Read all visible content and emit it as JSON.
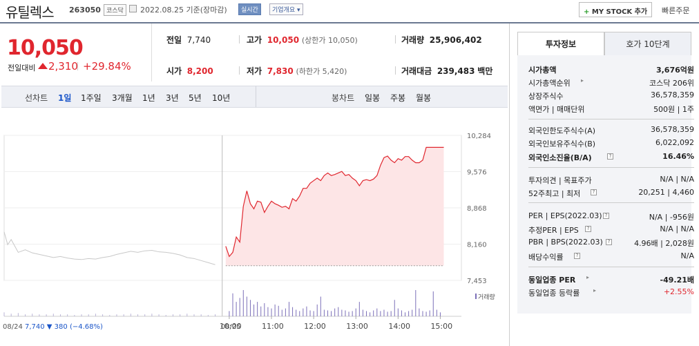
{
  "header": {
    "stock_name": "유틸렉스",
    "stock_code": "263050",
    "market": "코스닥",
    "date": "2022.08.25 기준(장마감)",
    "realtime": "실시간",
    "overview": "기업개요 ▾",
    "my_stock": "MY STOCK 추가",
    "my_stock_plus": "+",
    "quick_order": "빠른주문"
  },
  "price": {
    "current": "10,050",
    "change_label": "전일대비",
    "change": "2,310",
    "change_pct": "+29.84%",
    "up_color": "#e0262e"
  },
  "quote": {
    "prev_label": "전일",
    "prev": "7,740",
    "high_label": "고가",
    "high": "10,050",
    "high_limit": "(상한가 10,050)",
    "volume_label": "거래량",
    "volume": "25,906,402",
    "open_label": "시가",
    "open": "8,200",
    "low_label": "저가",
    "low": "7,830",
    "low_limit": "(하한가 5,420)",
    "amount_label": "거래대금",
    "amount": "239,483",
    "amount_unit": "백만"
  },
  "period_tabs": {
    "line_label": "선차트",
    "items": [
      "1일",
      "1주일",
      "3개월",
      "1년",
      "3년",
      "5년",
      "10년"
    ],
    "active": "1일",
    "candle_label": "봉차트",
    "candle_items": [
      "일봉",
      "주봉",
      "월봉"
    ]
  },
  "chart_data": {
    "type": "line",
    "y_ticks": [
      "10,284",
      "9,576",
      "8,868",
      "8,160",
      "7,453"
    ],
    "ylim": [
      7453,
      10284
    ],
    "x_ticks": [
      "10:00",
      "11:00",
      "12:00",
      "13:00",
      "14:00",
      "15:00"
    ],
    "prev_day_label": "08/24",
    "prev_day_close": "7,740",
    "prev_day_change": "▼ 380",
    "prev_day_pct": "(−4.68%)",
    "today_label": "08/25",
    "volume_legend": "거래량",
    "base_line": 7740,
    "prev_series": [
      [
        0,
        8400
      ],
      [
        1,
        8150
      ],
      [
        2,
        8250
      ],
      [
        4,
        8000
      ],
      [
        6,
        8050
      ],
      [
        8,
        7990
      ],
      [
        10,
        7960
      ],
      [
        12,
        7930
      ],
      [
        14,
        7900
      ],
      [
        16,
        7920
      ],
      [
        18,
        7890
      ],
      [
        20,
        7870
      ],
      [
        22,
        7860
      ],
      [
        24,
        7880
      ],
      [
        26,
        7870
      ],
      [
        28,
        7900
      ],
      [
        30,
        7920
      ],
      [
        32,
        7960
      ],
      [
        34,
        7990
      ],
      [
        36,
        8020
      ],
      [
        38,
        8000
      ],
      [
        40,
        8030
      ],
      [
        42,
        8040
      ],
      [
        44,
        8010
      ],
      [
        46,
        8000
      ],
      [
        48,
        7980
      ],
      [
        50,
        7950
      ],
      [
        52,
        7900
      ],
      [
        54,
        7880
      ],
      [
        56,
        7840
      ],
      [
        58,
        7800
      ],
      [
        60,
        7760
      ]
    ],
    "today_series": [
      [
        63,
        8120
      ],
      [
        64,
        7920
      ],
      [
        65,
        8000
      ],
      [
        66,
        8300
      ],
      [
        67,
        8200
      ],
      [
        68,
        8900
      ],
      [
        69,
        9200
      ],
      [
        70,
        8950
      ],
      [
        71,
        8850
      ],
      [
        72,
        9000
      ],
      [
        73,
        8980
      ],
      [
        74,
        8780
      ],
      [
        75,
        8900
      ],
      [
        76,
        9000
      ],
      [
        77,
        8950
      ],
      [
        78,
        8920
      ],
      [
        79,
        8880
      ],
      [
        80,
        8900
      ],
      [
        81,
        8850
      ],
      [
        82,
        9050
      ],
      [
        83,
        9000
      ],
      [
        84,
        9100
      ],
      [
        85,
        9250
      ],
      [
        86,
        9250
      ],
      [
        87,
        9350
      ],
      [
        88,
        9400
      ],
      [
        89,
        9450
      ],
      [
        90,
        9400
      ],
      [
        91,
        9500
      ],
      [
        92,
        9550
      ],
      [
        93,
        9500
      ],
      [
        94,
        9520
      ],
      [
        95,
        9550
      ],
      [
        96,
        9580
      ],
      [
        97,
        9500
      ],
      [
        98,
        9520
      ],
      [
        99,
        9450
      ],
      [
        100,
        9400
      ],
      [
        101,
        9300
      ],
      [
        102,
        9400
      ],
      [
        103,
        9420
      ],
      [
        104,
        9400
      ],
      [
        105,
        9430
      ],
      [
        106,
        9500
      ],
      [
        107,
        9700
      ],
      [
        108,
        9850
      ],
      [
        109,
        9880
      ],
      [
        110,
        9800
      ],
      [
        111,
        9750
      ],
      [
        112,
        9830
      ],
      [
        113,
        9800
      ],
      [
        114,
        9870
      ],
      [
        115,
        9870
      ],
      [
        116,
        9800
      ],
      [
        117,
        9750
      ],
      [
        118,
        9750
      ],
      [
        119,
        9800
      ],
      [
        120,
        10050
      ],
      [
        125,
        10050
      ]
    ],
    "volume_prev": [
      6,
      4,
      5,
      3,
      4,
      3,
      3,
      4,
      3,
      3,
      2,
      3,
      3,
      4,
      3,
      2,
      3,
      3,
      4,
      3,
      3,
      4,
      3,
      2,
      3,
      3,
      4,
      3,
      3,
      2,
      3
    ],
    "volume_today": [
      8,
      35,
      22,
      28,
      40,
      30,
      25,
      18,
      22,
      15,
      20,
      14,
      12,
      18,
      16,
      10,
      12,
      22,
      14,
      10,
      8,
      12,
      15,
      9,
      8,
      18,
      30,
      10,
      9,
      8,
      12,
      14,
      10,
      9,
      7,
      8,
      12,
      22,
      10,
      8,
      6,
      9,
      12,
      8,
      10,
      7,
      8,
      25,
      12,
      9,
      6,
      8,
      10,
      40,
      12,
      8,
      7,
      9,
      38,
      10,
      6
    ]
  },
  "side": {
    "tab_info": "투자정보",
    "tab_order": "호가 10단계",
    "rows1": [
      {
        "k": "시가총액",
        "v": "3,676억원"
      },
      {
        "k": "시가총액순위",
        "v": "코스닥 206위"
      },
      {
        "k": "상장주식수",
        "v": "36,578,359"
      },
      {
        "k": "액면가 | 매매단위",
        "v": "500원 | 1주"
      }
    ],
    "rows2": [
      {
        "k": "외국인한도주식수(A)",
        "v": "36,578,359"
      },
      {
        "k": "외국인보유주식수(B)",
        "v": "6,022,092"
      },
      {
        "k": "외국인소진율(B/A)",
        "v": "16.46%"
      }
    ],
    "rows3": [
      {
        "k": "투자의견 | 목표주가",
        "v": "N/A | N/A"
      },
      {
        "k": "52주최고 | 최저",
        "v": "20,251 | 4,460"
      }
    ],
    "rows4": [
      {
        "k": "PER | EPS(2022.03)",
        "v": "N/A | -956원"
      },
      {
        "k": "추정PER | EPS",
        "v": "N/A | N/A"
      },
      {
        "k": "PBR | BPS(2022.03)",
        "v": "4.96배 | 2,028원"
      },
      {
        "k": "배당수익률",
        "v": "N/A"
      }
    ],
    "rows5": [
      {
        "k": "동일업종 PER",
        "v": "-49.21배"
      },
      {
        "k": "동일업종 등락률",
        "v": "+2.55%"
      }
    ]
  }
}
